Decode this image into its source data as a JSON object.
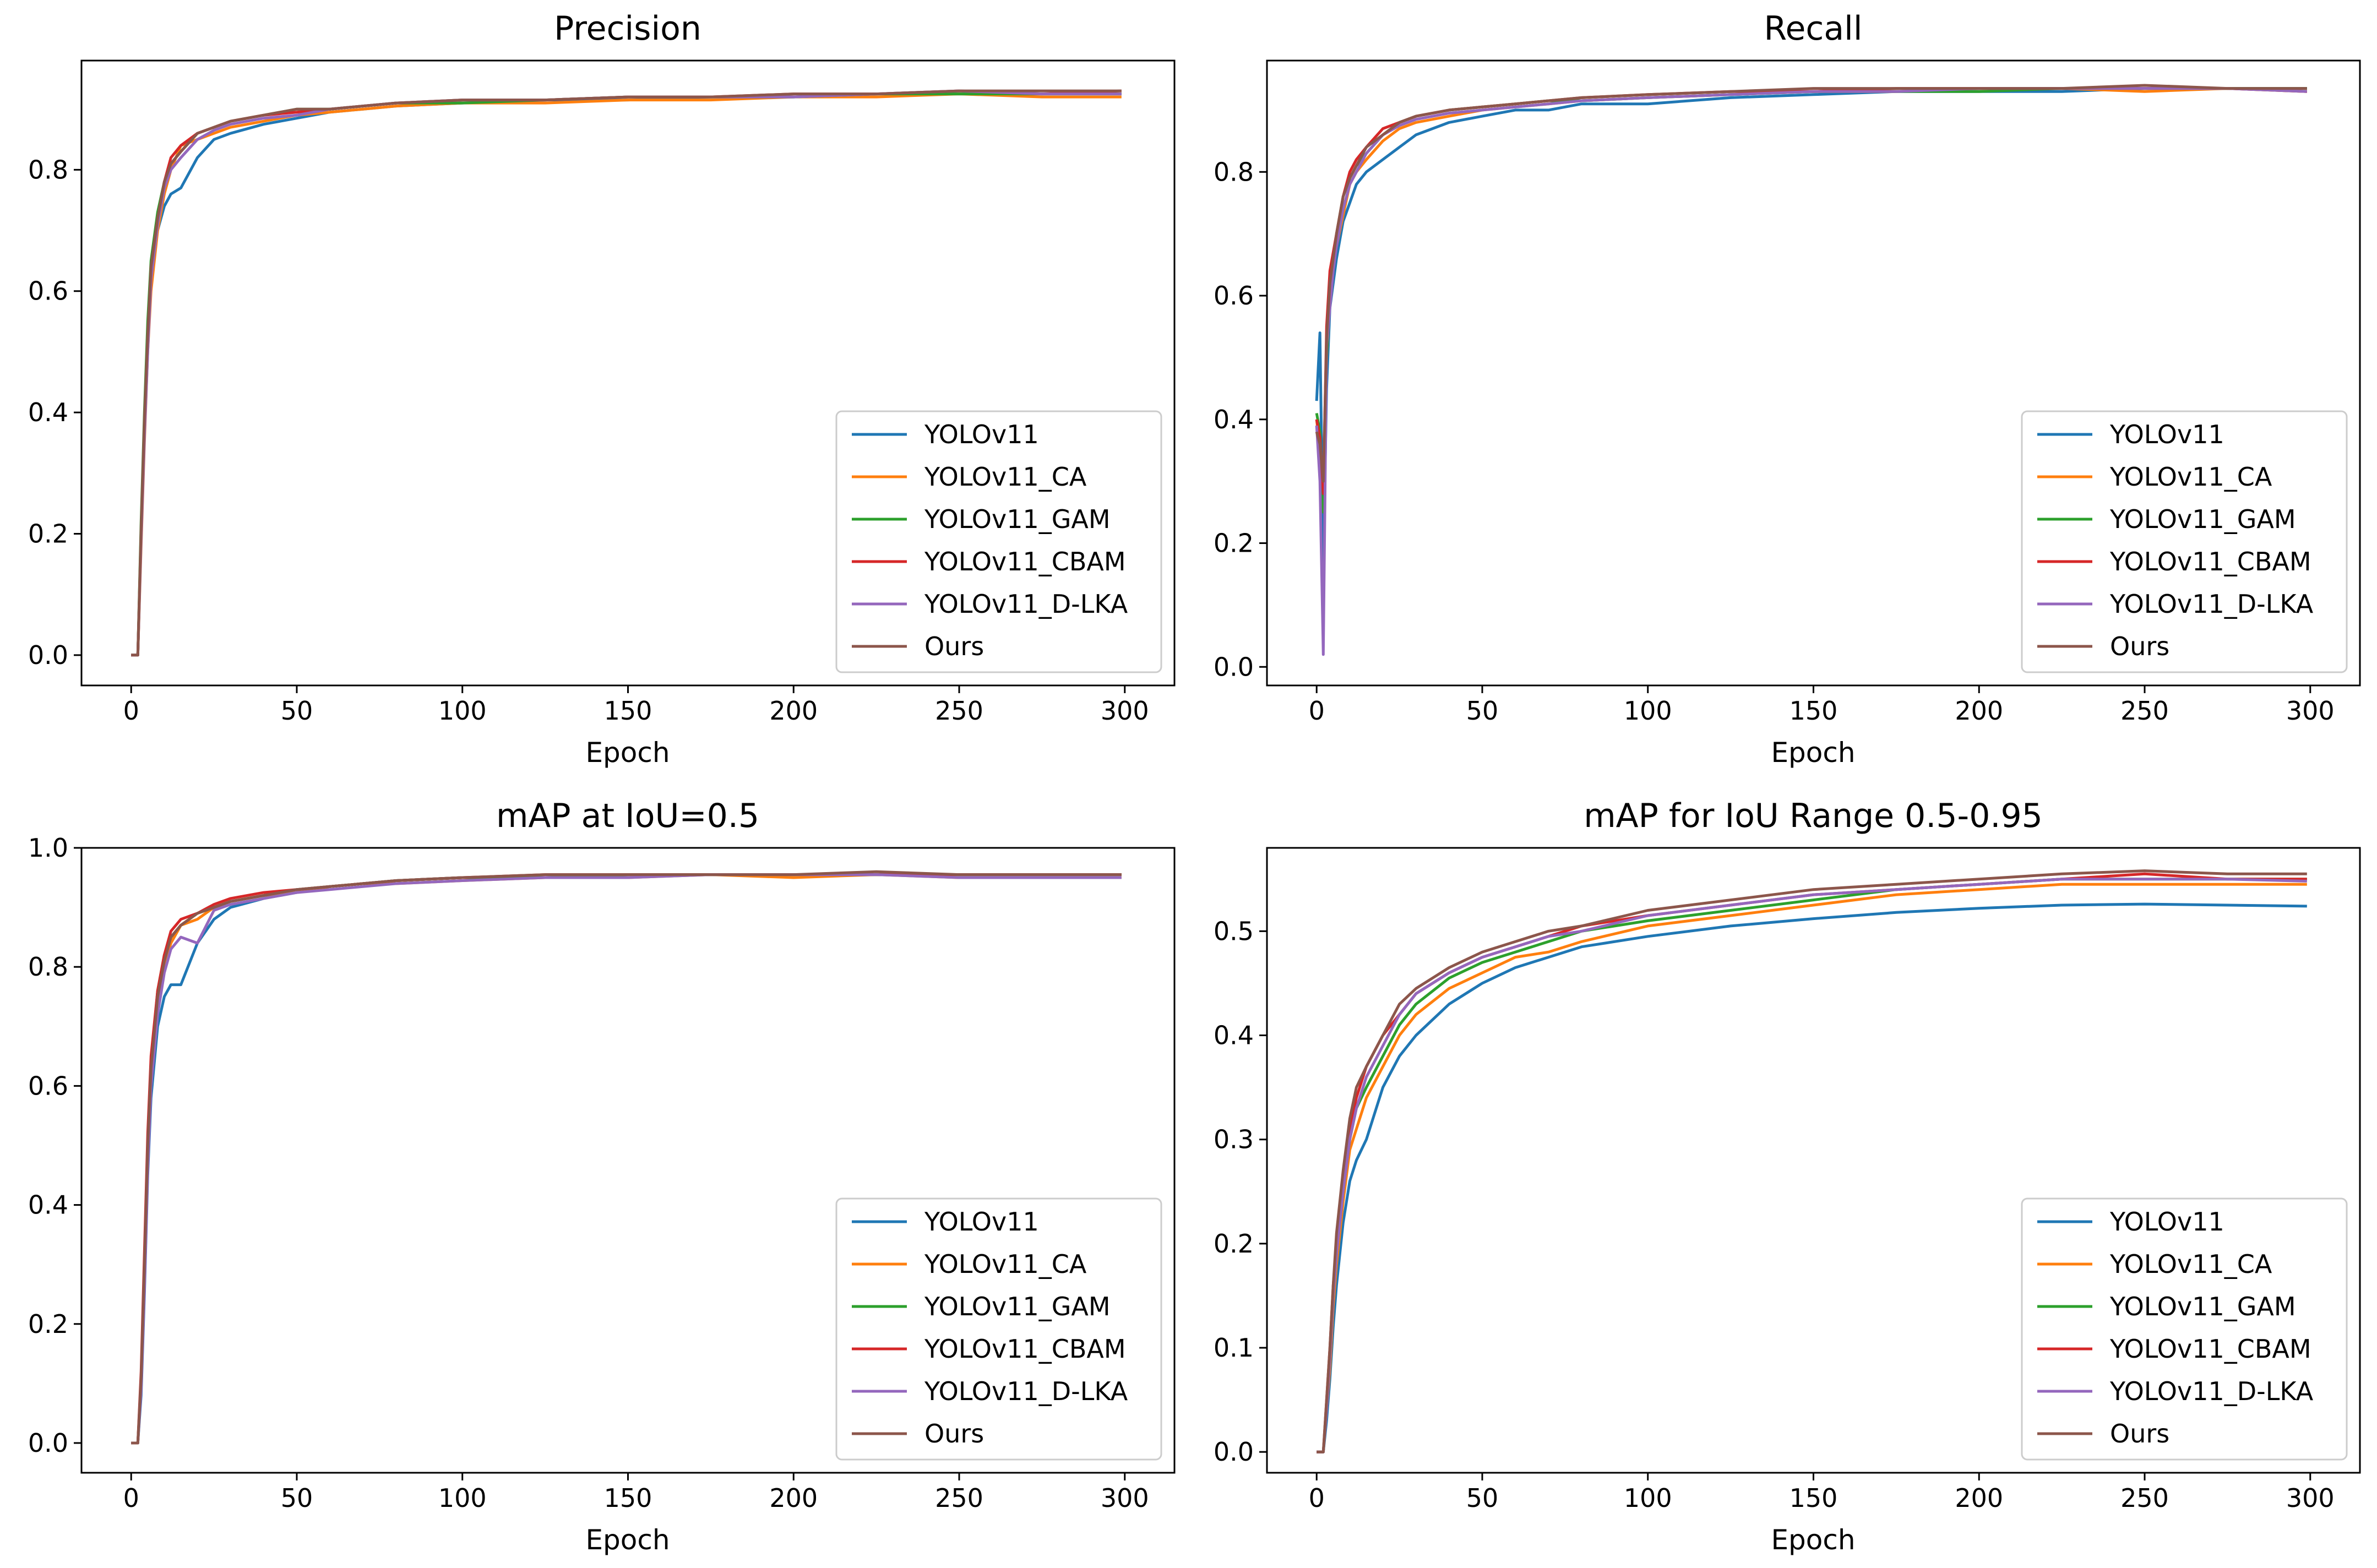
{
  "figure": {
    "series_names": [
      "YOLOv11",
      "YOLOv11_CA",
      "YOLOv11_GAM",
      "YOLOv11_CBAM",
      "YOLOv11_D-LKA",
      "Ours"
    ],
    "series_colors": [
      "#1f77b4",
      "#ff7f0e",
      "#2ca02c",
      "#d62728",
      "#9467bd",
      "#8c564b"
    ]
  },
  "chart_data": [
    {
      "type": "line",
      "title": "Precision",
      "xlabel": "Epoch",
      "ylabel": "",
      "xlim": [
        -15,
        315
      ],
      "ylim": [
        -0.05,
        0.98
      ],
      "xticks": [
        0,
        50,
        100,
        150,
        200,
        250,
        300
      ],
      "yticks": [
        0.0,
        0.2,
        0.4,
        0.6,
        0.8
      ],
      "ytick_labels": [
        "0.0",
        "0.2",
        "0.4",
        "0.6",
        "0.8"
      ],
      "legend_position": "lower-right",
      "x": [
        0,
        2,
        3,
        4,
        5,
        6,
        8,
        10,
        12,
        15,
        20,
        25,
        30,
        40,
        50,
        60,
        70,
        80,
        100,
        125,
        150,
        175,
        200,
        225,
        250,
        275,
        299
      ],
      "series": [
        {
          "name": "YOLOv11",
          "values": [
            0.0,
            0.0,
            0.2,
            0.38,
            0.52,
            0.62,
            0.7,
            0.74,
            0.76,
            0.77,
            0.82,
            0.85,
            0.86,
            0.875,
            0.885,
            0.895,
            0.9,
            0.905,
            0.91,
            0.915,
            0.915,
            0.92,
            0.92,
            0.925,
            0.925,
            0.925,
            0.925
          ]
        },
        {
          "name": "YOLOv11_CA",
          "values": [
            0.0,
            0.0,
            0.18,
            0.35,
            0.5,
            0.6,
            0.7,
            0.76,
            0.8,
            0.84,
            0.85,
            0.86,
            0.87,
            0.88,
            0.89,
            0.895,
            0.9,
            0.905,
            0.91,
            0.91,
            0.915,
            0.915,
            0.92,
            0.92,
            0.925,
            0.92,
            0.92
          ]
        },
        {
          "name": "YOLOv11_GAM",
          "values": [
            0.0,
            0.0,
            0.22,
            0.4,
            0.55,
            0.65,
            0.73,
            0.78,
            0.81,
            0.83,
            0.86,
            0.87,
            0.88,
            0.89,
            0.9,
            0.9,
            0.905,
            0.91,
            0.91,
            0.915,
            0.92,
            0.92,
            0.92,
            0.925,
            0.925,
            0.925,
            0.925
          ]
        },
        {
          "name": "YOLOv11_CBAM",
          "values": [
            0.0,
            0.0,
            0.2,
            0.38,
            0.52,
            0.64,
            0.72,
            0.78,
            0.82,
            0.84,
            0.86,
            0.87,
            0.88,
            0.89,
            0.895,
            0.9,
            0.905,
            0.91,
            0.915,
            0.915,
            0.92,
            0.92,
            0.925,
            0.925,
            0.93,
            0.925,
            0.93
          ]
        },
        {
          "name": "YOLOv11_D-LKA",
          "values": [
            0.0,
            0.0,
            0.19,
            0.36,
            0.5,
            0.62,
            0.71,
            0.77,
            0.8,
            0.82,
            0.85,
            0.865,
            0.875,
            0.885,
            0.89,
            0.9,
            0.905,
            0.91,
            0.915,
            0.915,
            0.92,
            0.92,
            0.92,
            0.925,
            0.93,
            0.925,
            0.925
          ]
        },
        {
          "name": "Ours",
          "values": [
            0.0,
            0.0,
            0.21,
            0.39,
            0.53,
            0.64,
            0.72,
            0.78,
            0.81,
            0.83,
            0.86,
            0.87,
            0.88,
            0.89,
            0.9,
            0.9,
            0.905,
            0.91,
            0.915,
            0.915,
            0.92,
            0.92,
            0.925,
            0.925,
            0.93,
            0.93,
            0.93
          ]
        }
      ]
    },
    {
      "type": "line",
      "title": "Recall",
      "xlabel": "Epoch",
      "ylabel": "",
      "xlim": [
        -15,
        315
      ],
      "ylim": [
        -0.03,
        0.98
      ],
      "xticks": [
        0,
        50,
        100,
        150,
        200,
        250,
        300
      ],
      "yticks": [
        0.0,
        0.2,
        0.4,
        0.6,
        0.8
      ],
      "ytick_labels": [
        "0.0",
        "0.2",
        "0.4",
        "0.6",
        "0.8"
      ],
      "legend_position": "lower-right",
      "x": [
        0,
        1,
        2,
        3,
        4,
        5,
        6,
        8,
        10,
        12,
        15,
        20,
        25,
        30,
        40,
        50,
        60,
        70,
        80,
        100,
        125,
        150,
        175,
        200,
        225,
        250,
        275,
        299
      ],
      "series": [
        {
          "name": "YOLOv11",
          "values": [
            0.43,
            0.54,
            0.16,
            0.45,
            0.58,
            0.62,
            0.66,
            0.72,
            0.75,
            0.78,
            0.8,
            0.82,
            0.84,
            0.86,
            0.88,
            0.89,
            0.9,
            0.9,
            0.91,
            0.91,
            0.92,
            0.925,
            0.93,
            0.93,
            0.93,
            0.935,
            0.935,
            0.935
          ]
        },
        {
          "name": "YOLOv11_CA",
          "values": [
            0.4,
            0.35,
            0.3,
            0.5,
            0.6,
            0.65,
            0.68,
            0.73,
            0.78,
            0.8,
            0.82,
            0.85,
            0.87,
            0.88,
            0.89,
            0.9,
            0.905,
            0.91,
            0.915,
            0.92,
            0.925,
            0.93,
            0.93,
            0.935,
            0.935,
            0.93,
            0.935,
            0.93
          ]
        },
        {
          "name": "YOLOv11_GAM",
          "values": [
            0.41,
            0.38,
            0.25,
            0.5,
            0.62,
            0.66,
            0.7,
            0.76,
            0.79,
            0.81,
            0.83,
            0.86,
            0.88,
            0.89,
            0.9,
            0.905,
            0.91,
            0.915,
            0.915,
            0.92,
            0.925,
            0.93,
            0.93,
            0.93,
            0.935,
            0.935,
            0.935,
            0.935
          ]
        },
        {
          "name": "YOLOv11_CBAM",
          "values": [
            0.4,
            0.37,
            0.28,
            0.55,
            0.64,
            0.67,
            0.7,
            0.76,
            0.8,
            0.82,
            0.84,
            0.87,
            0.88,
            0.89,
            0.9,
            0.905,
            0.91,
            0.915,
            0.92,
            0.925,
            0.93,
            0.93,
            0.935,
            0.935,
            0.935,
            0.935,
            0.935,
            0.93
          ]
        },
        {
          "name": "YOLOv11_D-LKA",
          "values": [
            0.39,
            0.3,
            0.02,
            0.52,
            0.58,
            0.64,
            0.68,
            0.74,
            0.78,
            0.8,
            0.83,
            0.86,
            0.875,
            0.885,
            0.895,
            0.9,
            0.905,
            0.91,
            0.915,
            0.92,
            0.925,
            0.93,
            0.93,
            0.935,
            0.935,
            0.935,
            0.935,
            0.93
          ]
        },
        {
          "name": "Ours",
          "values": [
            0.38,
            0.36,
            0.3,
            0.53,
            0.62,
            0.66,
            0.7,
            0.76,
            0.79,
            0.81,
            0.84,
            0.86,
            0.88,
            0.89,
            0.9,
            0.905,
            0.91,
            0.915,
            0.92,
            0.925,
            0.93,
            0.935,
            0.935,
            0.935,
            0.935,
            0.94,
            0.935,
            0.935
          ]
        }
      ]
    },
    {
      "type": "line",
      "title": "mAP at IoU=0.5",
      "xlabel": "Epoch",
      "ylabel": "",
      "xlim": [
        -15,
        315
      ],
      "ylim": [
        -0.05,
        1.0
      ],
      "xticks": [
        0,
        50,
        100,
        150,
        200,
        250,
        300
      ],
      "yticks": [
        0.0,
        0.2,
        0.4,
        0.6,
        0.8,
        1.0
      ],
      "ytick_labels": [
        "0.0",
        "0.2",
        "0.4",
        "0.6",
        "0.8",
        "1.0"
      ],
      "legend_position": "lower-right",
      "x": [
        0,
        2,
        3,
        4,
        5,
        6,
        8,
        10,
        12,
        15,
        20,
        25,
        30,
        40,
        50,
        60,
        70,
        80,
        100,
        125,
        150,
        175,
        200,
        225,
        250,
        275,
        299
      ],
      "series": [
        {
          "name": "YOLOv11",
          "values": [
            0.0,
            0.0,
            0.08,
            0.25,
            0.45,
            0.58,
            0.7,
            0.75,
            0.77,
            0.77,
            0.84,
            0.88,
            0.9,
            0.915,
            0.925,
            0.935,
            0.94,
            0.945,
            0.95,
            0.95,
            0.955,
            0.955,
            0.955,
            0.955,
            0.955,
            0.955,
            0.955
          ]
        },
        {
          "name": "YOLOv11_CA",
          "values": [
            0.0,
            0.0,
            0.1,
            0.28,
            0.5,
            0.62,
            0.74,
            0.8,
            0.84,
            0.87,
            0.88,
            0.9,
            0.91,
            0.92,
            0.925,
            0.935,
            0.94,
            0.94,
            0.945,
            0.95,
            0.95,
            0.955,
            0.95,
            0.955,
            0.95,
            0.95,
            0.95
          ]
        },
        {
          "name": "YOLOv11_GAM",
          "values": [
            0.0,
            0.0,
            0.1,
            0.3,
            0.5,
            0.64,
            0.76,
            0.82,
            0.85,
            0.87,
            0.89,
            0.9,
            0.91,
            0.92,
            0.93,
            0.935,
            0.94,
            0.945,
            0.95,
            0.95,
            0.955,
            0.955,
            0.955,
            0.955,
            0.955,
            0.955,
            0.955
          ]
        },
        {
          "name": "YOLOv11_CBAM",
          "values": [
            0.0,
            0.0,
            0.12,
            0.32,
            0.52,
            0.65,
            0.76,
            0.82,
            0.86,
            0.88,
            0.89,
            0.905,
            0.915,
            0.925,
            0.93,
            0.935,
            0.94,
            0.945,
            0.95,
            0.955,
            0.955,
            0.955,
            0.955,
            0.955,
            0.955,
            0.955,
            0.955
          ]
        },
        {
          "name": "YOLOv11_D-LKA",
          "values": [
            0.0,
            0.0,
            0.09,
            0.26,
            0.46,
            0.6,
            0.72,
            0.79,
            0.83,
            0.85,
            0.84,
            0.895,
            0.905,
            0.915,
            0.925,
            0.93,
            0.935,
            0.94,
            0.945,
            0.95,
            0.95,
            0.955,
            0.955,
            0.955,
            0.95,
            0.95,
            0.95
          ]
        },
        {
          "name": "Ours",
          "values": [
            0.0,
            0.0,
            0.11,
            0.3,
            0.5,
            0.63,
            0.75,
            0.81,
            0.85,
            0.87,
            0.89,
            0.9,
            0.91,
            0.92,
            0.93,
            0.935,
            0.94,
            0.945,
            0.95,
            0.955,
            0.955,
            0.955,
            0.955,
            0.96,
            0.955,
            0.955,
            0.955
          ]
        }
      ]
    },
    {
      "type": "line",
      "title": "mAP for IoU Range 0.5-0.95",
      "xlabel": "Epoch",
      "ylabel": "",
      "xlim": [
        -15,
        315
      ],
      "ylim": [
        -0.02,
        0.58
      ],
      "xticks": [
        0,
        50,
        100,
        150,
        200,
        250,
        300
      ],
      "yticks": [
        0.0,
        0.1,
        0.2,
        0.3,
        0.4,
        0.5
      ],
      "ytick_labels": [
        "0.0",
        "0.1",
        "0.2",
        "0.3",
        "0.4",
        "0.5"
      ],
      "legend_position": "lower-right",
      "x": [
        0,
        2,
        3,
        4,
        5,
        6,
        8,
        10,
        12,
        15,
        20,
        25,
        30,
        40,
        50,
        60,
        70,
        80,
        100,
        125,
        150,
        175,
        200,
        225,
        250,
        275,
        299
      ],
      "series": [
        {
          "name": "YOLOv11",
          "values": [
            0.0,
            0.0,
            0.03,
            0.07,
            0.12,
            0.16,
            0.22,
            0.26,
            0.28,
            0.3,
            0.35,
            0.38,
            0.4,
            0.43,
            0.45,
            0.465,
            0.475,
            0.485,
            0.495,
            0.505,
            0.512,
            0.518,
            0.522,
            0.525,
            0.526,
            0.525,
            0.524
          ]
        },
        {
          "name": "YOLOv11_CA",
          "values": [
            0.0,
            0.0,
            0.04,
            0.08,
            0.14,
            0.18,
            0.24,
            0.29,
            0.31,
            0.34,
            0.37,
            0.4,
            0.42,
            0.445,
            0.46,
            0.475,
            0.48,
            0.49,
            0.505,
            0.515,
            0.525,
            0.535,
            0.54,
            0.545,
            0.545,
            0.545,
            0.545
          ]
        },
        {
          "name": "YOLOv11_GAM",
          "values": [
            0.0,
            0.0,
            0.04,
            0.09,
            0.15,
            0.19,
            0.25,
            0.3,
            0.33,
            0.35,
            0.38,
            0.41,
            0.43,
            0.455,
            0.47,
            0.48,
            0.49,
            0.5,
            0.51,
            0.52,
            0.53,
            0.54,
            0.545,
            0.55,
            0.55,
            0.55,
            0.55
          ]
        },
        {
          "name": "YOLOv11_CBAM",
          "values": [
            0.0,
            0.0,
            0.05,
            0.1,
            0.16,
            0.2,
            0.26,
            0.31,
            0.34,
            0.37,
            0.4,
            0.42,
            0.44,
            0.46,
            0.475,
            0.485,
            0.495,
            0.505,
            0.515,
            0.525,
            0.535,
            0.54,
            0.545,
            0.55,
            0.555,
            0.55,
            0.55
          ]
        },
        {
          "name": "YOLOv11_D-LKA",
          "values": [
            0.0,
            0.0,
            0.04,
            0.09,
            0.15,
            0.19,
            0.25,
            0.3,
            0.33,
            0.36,
            0.39,
            0.42,
            0.44,
            0.46,
            0.475,
            0.485,
            0.495,
            0.5,
            0.515,
            0.525,
            0.535,
            0.54,
            0.545,
            0.55,
            0.55,
            0.55,
            0.548
          ]
        },
        {
          "name": "Ours",
          "values": [
            0.0,
            0.0,
            0.05,
            0.1,
            0.16,
            0.21,
            0.27,
            0.32,
            0.35,
            0.37,
            0.4,
            0.43,
            0.445,
            0.465,
            0.48,
            0.49,
            0.5,
            0.505,
            0.52,
            0.53,
            0.54,
            0.545,
            0.55,
            0.555,
            0.558,
            0.555,
            0.555
          ]
        }
      ]
    }
  ]
}
